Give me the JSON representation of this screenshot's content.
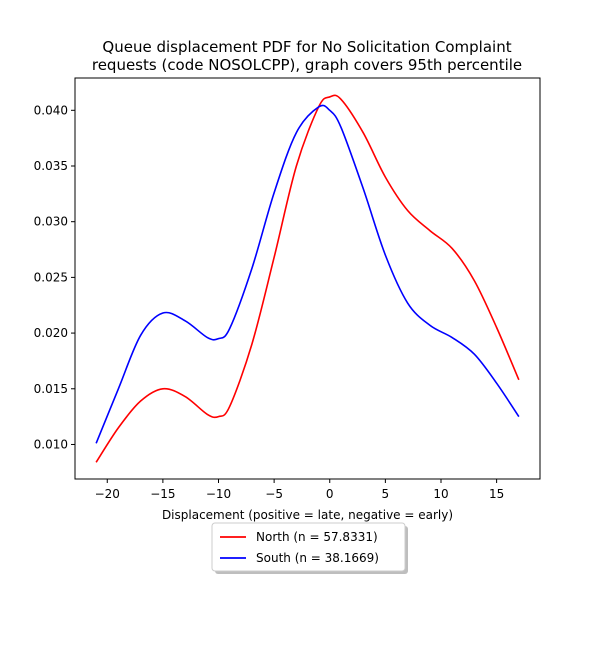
{
  "chart_data": {
    "type": "line",
    "title_lines": [
      "Queue displacement PDF for No Solicitation Complaint",
      "requests (code NOSOLCPP), graph covers 95th percentile"
    ],
    "xlabel": "Displacement (positive = late, negative = early)",
    "ylabel": "",
    "xlim": [
      -22.9,
      18.9
    ],
    "ylim": [
      0.0069,
      0.0429
    ],
    "xticks": [
      -20,
      -15,
      -10,
      -5,
      0,
      5,
      10,
      15
    ],
    "xtick_labels": [
      "−20",
      "−15",
      "−10",
      "−5",
      "0",
      "5",
      "10",
      "15"
    ],
    "yticks": [
      0.01,
      0.015,
      0.02,
      0.025,
      0.03,
      0.035,
      0.04
    ],
    "ytick_labels": [
      "0.010",
      "0.015",
      "0.020",
      "0.025",
      "0.030",
      "0.035",
      "0.040"
    ],
    "grid": false,
    "legend_position": "below-axes-center",
    "series": [
      {
        "name": "North (n = 57.8331)",
        "color": "#ff0000",
        "x": [
          -21,
          -19,
          -17,
          -15,
          -13,
          -11,
          -10,
          -9,
          -7,
          -5,
          -3,
          -1,
          0,
          1,
          3,
          5,
          7,
          9,
          11,
          13,
          15,
          17
        ],
        "y": [
          0.0084,
          0.0115,
          0.0139,
          0.015,
          0.0143,
          0.0127,
          0.0125,
          0.0134,
          0.019,
          0.0268,
          0.035,
          0.0403,
          0.0412,
          0.041,
          0.038,
          0.034,
          0.031,
          0.0292,
          0.0276,
          0.0247,
          0.0205,
          0.0158
        ]
      },
      {
        "name": "South (n = 38.1669)",
        "color": "#0000ff",
        "x": [
          -21,
          -19,
          -17,
          -15,
          -13,
          -11,
          -10,
          -9,
          -7,
          -5,
          -3,
          -1,
          0,
          1,
          3,
          5,
          7,
          9,
          11,
          13,
          15,
          17
        ],
        "y": [
          0.0101,
          0.015,
          0.0198,
          0.0218,
          0.0211,
          0.0196,
          0.0195,
          0.0204,
          0.0258,
          0.0326,
          0.038,
          0.0403,
          0.04,
          0.0385,
          0.033,
          0.027,
          0.0227,
          0.0207,
          0.0196,
          0.0181,
          0.0155,
          0.0125
        ]
      }
    ]
  }
}
